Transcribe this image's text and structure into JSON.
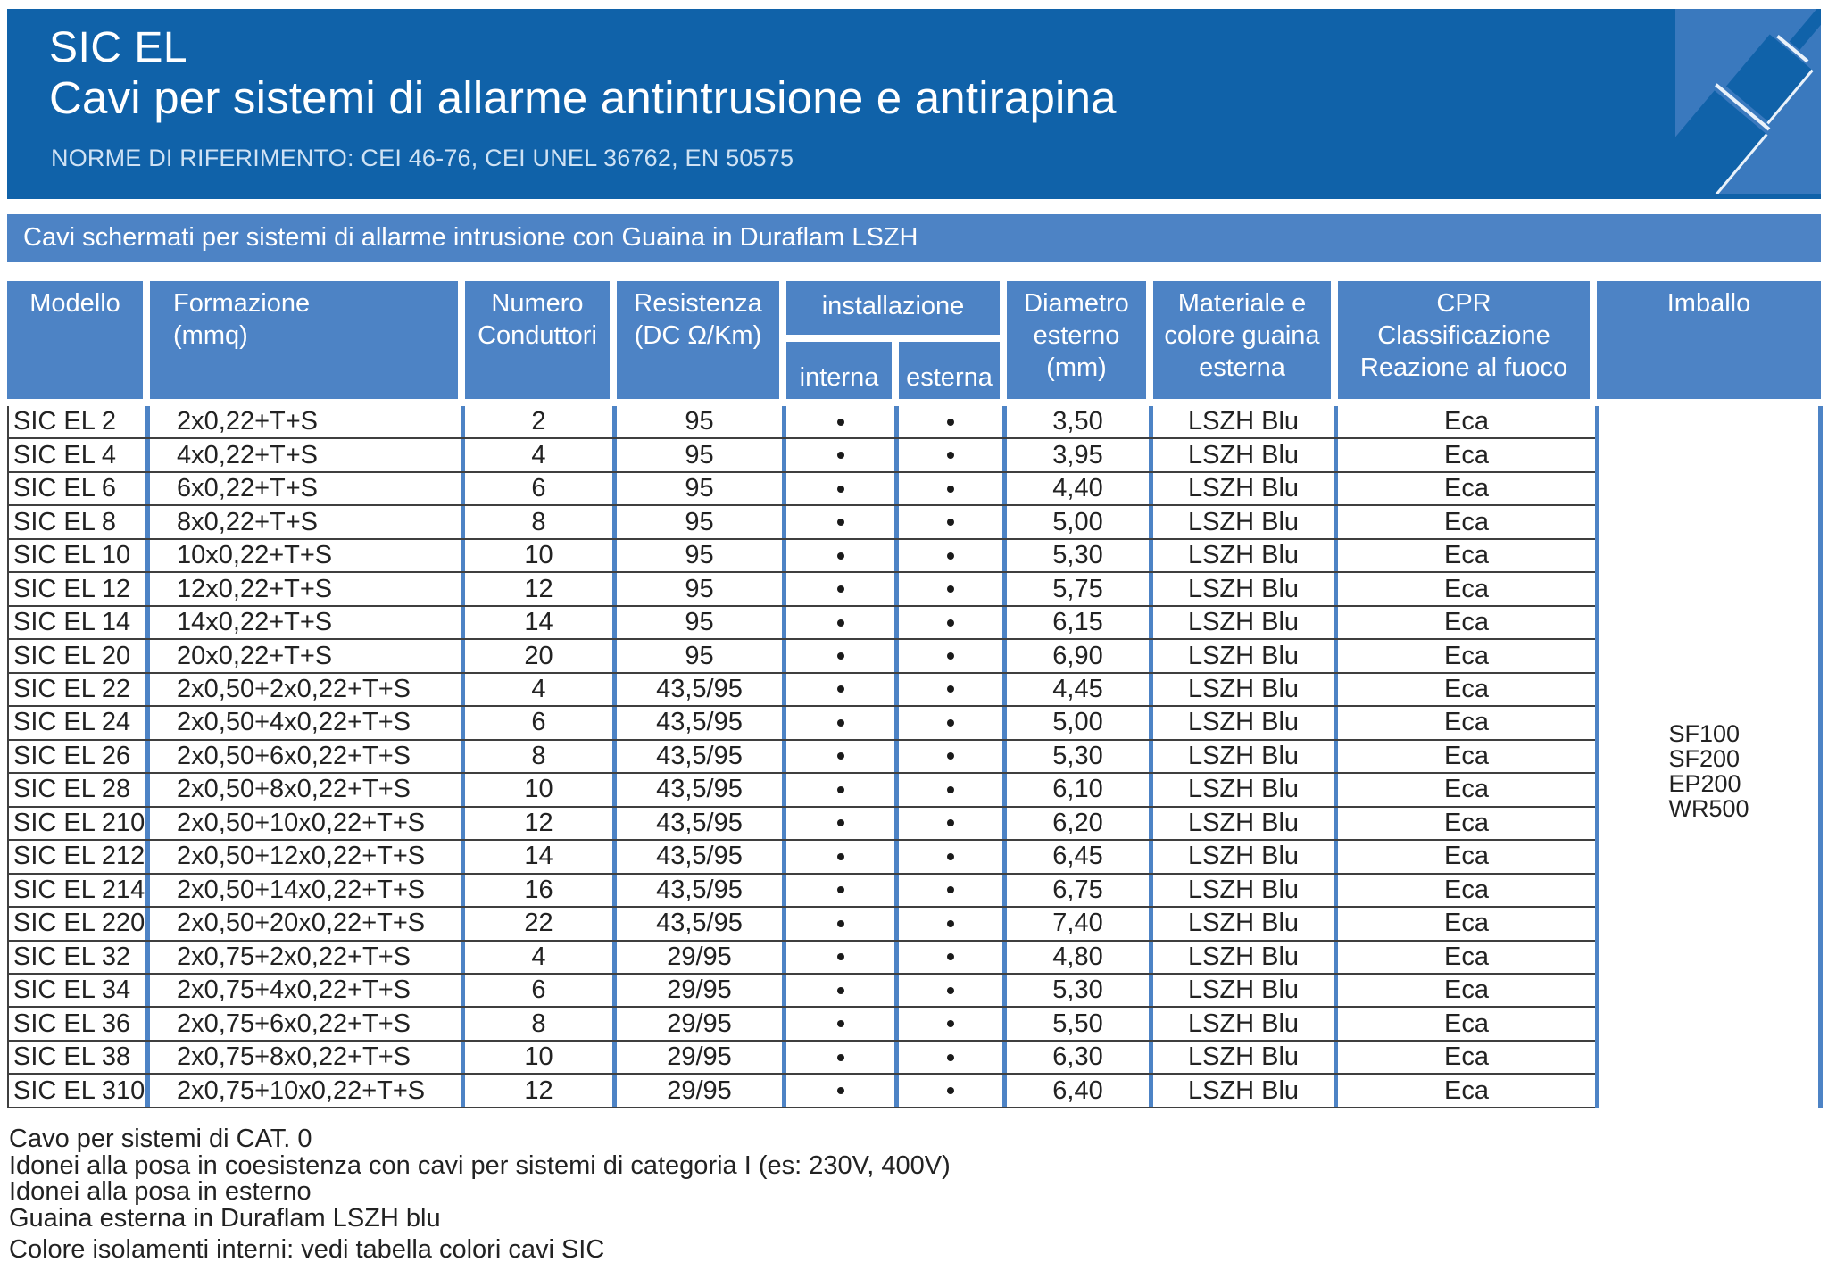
{
  "header": {
    "product": "SIC EL",
    "title": "Cavi per sistemi di allarme antintrusione e antirapina",
    "norms": "NORME DI RIFERIMENTO: CEI 46-76, CEI UNEL 36762, EN 50575"
  },
  "band": {
    "text": "Cavi schermati per sistemi di allarme intrusione con Guaina in Duraflam LSZH"
  },
  "table": {
    "columns": {
      "modello": {
        "l1": "Modello"
      },
      "formazione": {
        "l1": "Formazione",
        "l2": "(mmq)"
      },
      "numero": {
        "l1": "Numero",
        "l2": "Conduttori"
      },
      "resistenza": {
        "l1": "Resistenza",
        "l2": "(DC Ω/Km)"
      },
      "installazione": {
        "l1": "installazione",
        "sub1": "interna",
        "sub2": "esterna"
      },
      "diametro": {
        "l1": "Diametro",
        "l2": "esterno",
        "l3": "(mm)"
      },
      "materiale": {
        "l1": "Materiale e",
        "l2": "colore guaina",
        "l3": "esterna"
      },
      "cpr": {
        "l1": "CPR",
        "l2": "Classificazione",
        "l3": "Reazione al fuoco"
      },
      "imballo": {
        "l1": "Imballo"
      }
    },
    "rows": [
      {
        "model": "SIC EL 2",
        "formation": "2x0,22+T+S",
        "conductors": "2",
        "resistance": "95",
        "interna": true,
        "esterna": true,
        "diameter": "3,50",
        "sheath": "LSZH Blu",
        "cpr": "Eca"
      },
      {
        "model": "SIC EL 4",
        "formation": "4x0,22+T+S",
        "conductors": "4",
        "resistance": "95",
        "interna": true,
        "esterna": true,
        "diameter": "3,95",
        "sheath": "LSZH Blu",
        "cpr": "Eca"
      },
      {
        "model": "SIC EL 6",
        "formation": "6x0,22+T+S",
        "conductors": "6",
        "resistance": "95",
        "interna": true,
        "esterna": true,
        "diameter": "4,40",
        "sheath": "LSZH Blu",
        "cpr": "Eca"
      },
      {
        "model": "SIC EL 8",
        "formation": "8x0,22+T+S",
        "conductors": "8",
        "resistance": "95",
        "interna": true,
        "esterna": true,
        "diameter": "5,00",
        "sheath": "LSZH Blu",
        "cpr": "Eca"
      },
      {
        "model": "SIC EL 10",
        "formation": "10x0,22+T+S",
        "conductors": "10",
        "resistance": "95",
        "interna": true,
        "esterna": true,
        "diameter": "5,30",
        "sheath": "LSZH Blu",
        "cpr": "Eca"
      },
      {
        "model": "SIC EL 12",
        "formation": "12x0,22+T+S",
        "conductors": "12",
        "resistance": "95",
        "interna": true,
        "esterna": true,
        "diameter": "5,75",
        "sheath": "LSZH Blu",
        "cpr": "Eca"
      },
      {
        "model": "SIC EL 14",
        "formation": "14x0,22+T+S",
        "conductors": "14",
        "resistance": "95",
        "interna": true,
        "esterna": true,
        "diameter": "6,15",
        "sheath": "LSZH Blu",
        "cpr": "Eca"
      },
      {
        "model": "SIC EL 20",
        "formation": "20x0,22+T+S",
        "conductors": "20",
        "resistance": "95",
        "interna": true,
        "esterna": true,
        "diameter": "6,90",
        "sheath": "LSZH Blu",
        "cpr": "Eca"
      },
      {
        "model": "SIC EL 22",
        "formation": "2x0,50+2x0,22+T+S",
        "conductors": "4",
        "resistance": "43,5/95",
        "interna": true,
        "esterna": true,
        "diameter": "4,45",
        "sheath": "LSZH Blu",
        "cpr": "Eca"
      },
      {
        "model": "SIC EL 24",
        "formation": "2x0,50+4x0,22+T+S",
        "conductors": "6",
        "resistance": "43,5/95",
        "interna": true,
        "esterna": true,
        "diameter": "5,00",
        "sheath": "LSZH Blu",
        "cpr": "Eca"
      },
      {
        "model": "SIC EL 26",
        "formation": "2x0,50+6x0,22+T+S",
        "conductors": "8",
        "resistance": "43,5/95",
        "interna": true,
        "esterna": true,
        "diameter": "5,30",
        "sheath": "LSZH Blu",
        "cpr": "Eca"
      },
      {
        "model": "SIC EL 28",
        "formation": "2x0,50+8x0,22+T+S",
        "conductors": "10",
        "resistance": "43,5/95",
        "interna": true,
        "esterna": true,
        "diameter": "6,10",
        "sheath": "LSZH Blu",
        "cpr": "Eca"
      },
      {
        "model": "SIC EL 210",
        "formation": "2x0,50+10x0,22+T+S",
        "conductors": "12",
        "resistance": "43,5/95",
        "interna": true,
        "esterna": true,
        "diameter": "6,20",
        "sheath": "LSZH Blu",
        "cpr": "Eca"
      },
      {
        "model": "SIC EL 212",
        "formation": "2x0,50+12x0,22+T+S",
        "conductors": "14",
        "resistance": "43,5/95",
        "interna": true,
        "esterna": true,
        "diameter": "6,45",
        "sheath": "LSZH Blu",
        "cpr": "Eca"
      },
      {
        "model": "SIC EL 214",
        "formation": "2x0,50+14x0,22+T+S",
        "conductors": "16",
        "resistance": "43,5/95",
        "interna": true,
        "esterna": true,
        "diameter": "6,75",
        "sheath": "LSZH Blu",
        "cpr": "Eca"
      },
      {
        "model": "SIC EL 220",
        "formation": "2x0,50+20x0,22+T+S",
        "conductors": "22",
        "resistance": "43,5/95",
        "interna": true,
        "esterna": true,
        "diameter": "7,40",
        "sheath": "LSZH Blu",
        "cpr": "Eca"
      },
      {
        "model": "SIC EL 32",
        "formation": "2x0,75+2x0,22+T+S",
        "conductors": "4",
        "resistance": "29/95",
        "interna": true,
        "esterna": true,
        "diameter": "4,80",
        "sheath": "LSZH Blu",
        "cpr": "Eca"
      },
      {
        "model": "SIC EL 34",
        "formation": "2x0,75+4x0,22+T+S",
        "conductors": "6",
        "resistance": "29/95",
        "interna": true,
        "esterna": true,
        "diameter": "5,30",
        "sheath": "LSZH Blu",
        "cpr": "Eca"
      },
      {
        "model": "SIC EL 36",
        "formation": "2x0,75+6x0,22+T+S",
        "conductors": "8",
        "resistance": "29/95",
        "interna": true,
        "esterna": true,
        "diameter": "5,50",
        "sheath": "LSZH Blu",
        "cpr": "Eca"
      },
      {
        "model": "SIC EL 38",
        "formation": "2x0,75+8x0,22+T+S",
        "conductors": "10",
        "resistance": "29/95",
        "interna": true,
        "esterna": true,
        "diameter": "6,30",
        "sheath": "LSZH Blu",
        "cpr": "Eca"
      },
      {
        "model": "SIC EL 310",
        "formation": "2x0,75+10x0,22+T+S",
        "conductors": "12",
        "resistance": "29/95",
        "interna": true,
        "esterna": true,
        "diameter": "6,40",
        "sheath": "LSZH Blu",
        "cpr": "Eca"
      }
    ],
    "imballo_options": [
      "SF100",
      "SF200",
      "EP200",
      "WR500"
    ]
  },
  "notes": [
    "Cavo per sistemi di CAT. 0",
    "Idonei alla posa in coesistenza con cavi per sistemi di categoria I (es: 230V, 400V)",
    "Idonei alla posa in esterno",
    "Guaina esterna in Duraflam LSZH blu",
    "Colore isolamenti interni: vedi tabella colori cavi SIC"
  ],
  "colors": {
    "header_blue": "#1062a9",
    "band_blue": "#4d83c5",
    "logo_blue": "#3a79be",
    "text_dark": "#222222",
    "grid_dark": "#3f3f3f",
    "norms_text": "#cfe2f4"
  }
}
